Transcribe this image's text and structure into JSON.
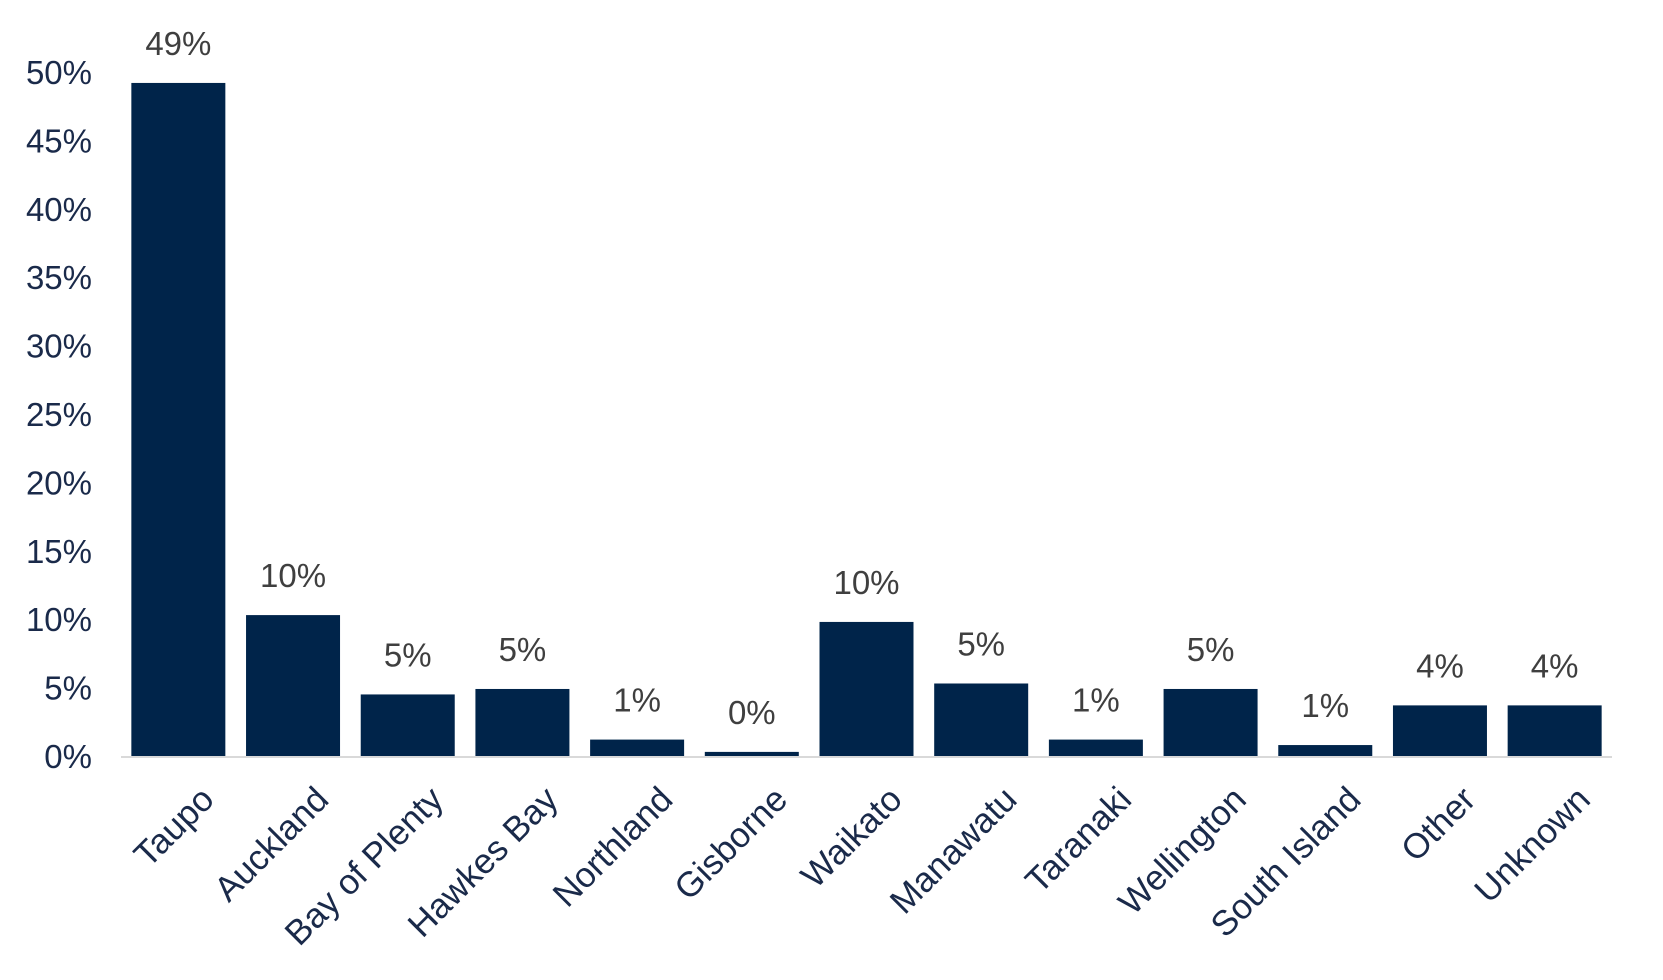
{
  "chart_data": {
    "type": "bar",
    "categories": [
      "Taupo",
      "Auckland",
      "Bay of Plenty",
      "Hawkes Bay",
      "Northland",
      "Gisborne",
      "Waikato",
      "Manawatu",
      "Taranaki",
      "Wellington",
      "South Island",
      "Other",
      "Unknown"
    ],
    "values": [
      49.2,
      10.3,
      4.5,
      4.9,
      1.2,
      0.3,
      9.8,
      5.3,
      1.2,
      4.9,
      0.8,
      3.7,
      3.7
    ],
    "data_labels": [
      "49%",
      "10%",
      "5%",
      "5%",
      "1%",
      "0%",
      "10%",
      "5%",
      "1%",
      "5%",
      "1%",
      "4%",
      "4%"
    ],
    "y_ticks": [
      0,
      5,
      10,
      15,
      20,
      25,
      30,
      35,
      40,
      45,
      50
    ],
    "y_tick_labels": [
      "0%",
      "5%",
      "10%",
      "15%",
      "20%",
      "25%",
      "30%",
      "35%",
      "40%",
      "45%",
      "50%"
    ],
    "ylim": [
      0,
      50
    ],
    "grid": false,
    "legend": "none",
    "colors": {
      "bar": "#00244a",
      "axis_text": "#1a2a4a",
      "data_label_text": "#3f3f3f",
      "axis_line": "#d9d9d9"
    }
  }
}
